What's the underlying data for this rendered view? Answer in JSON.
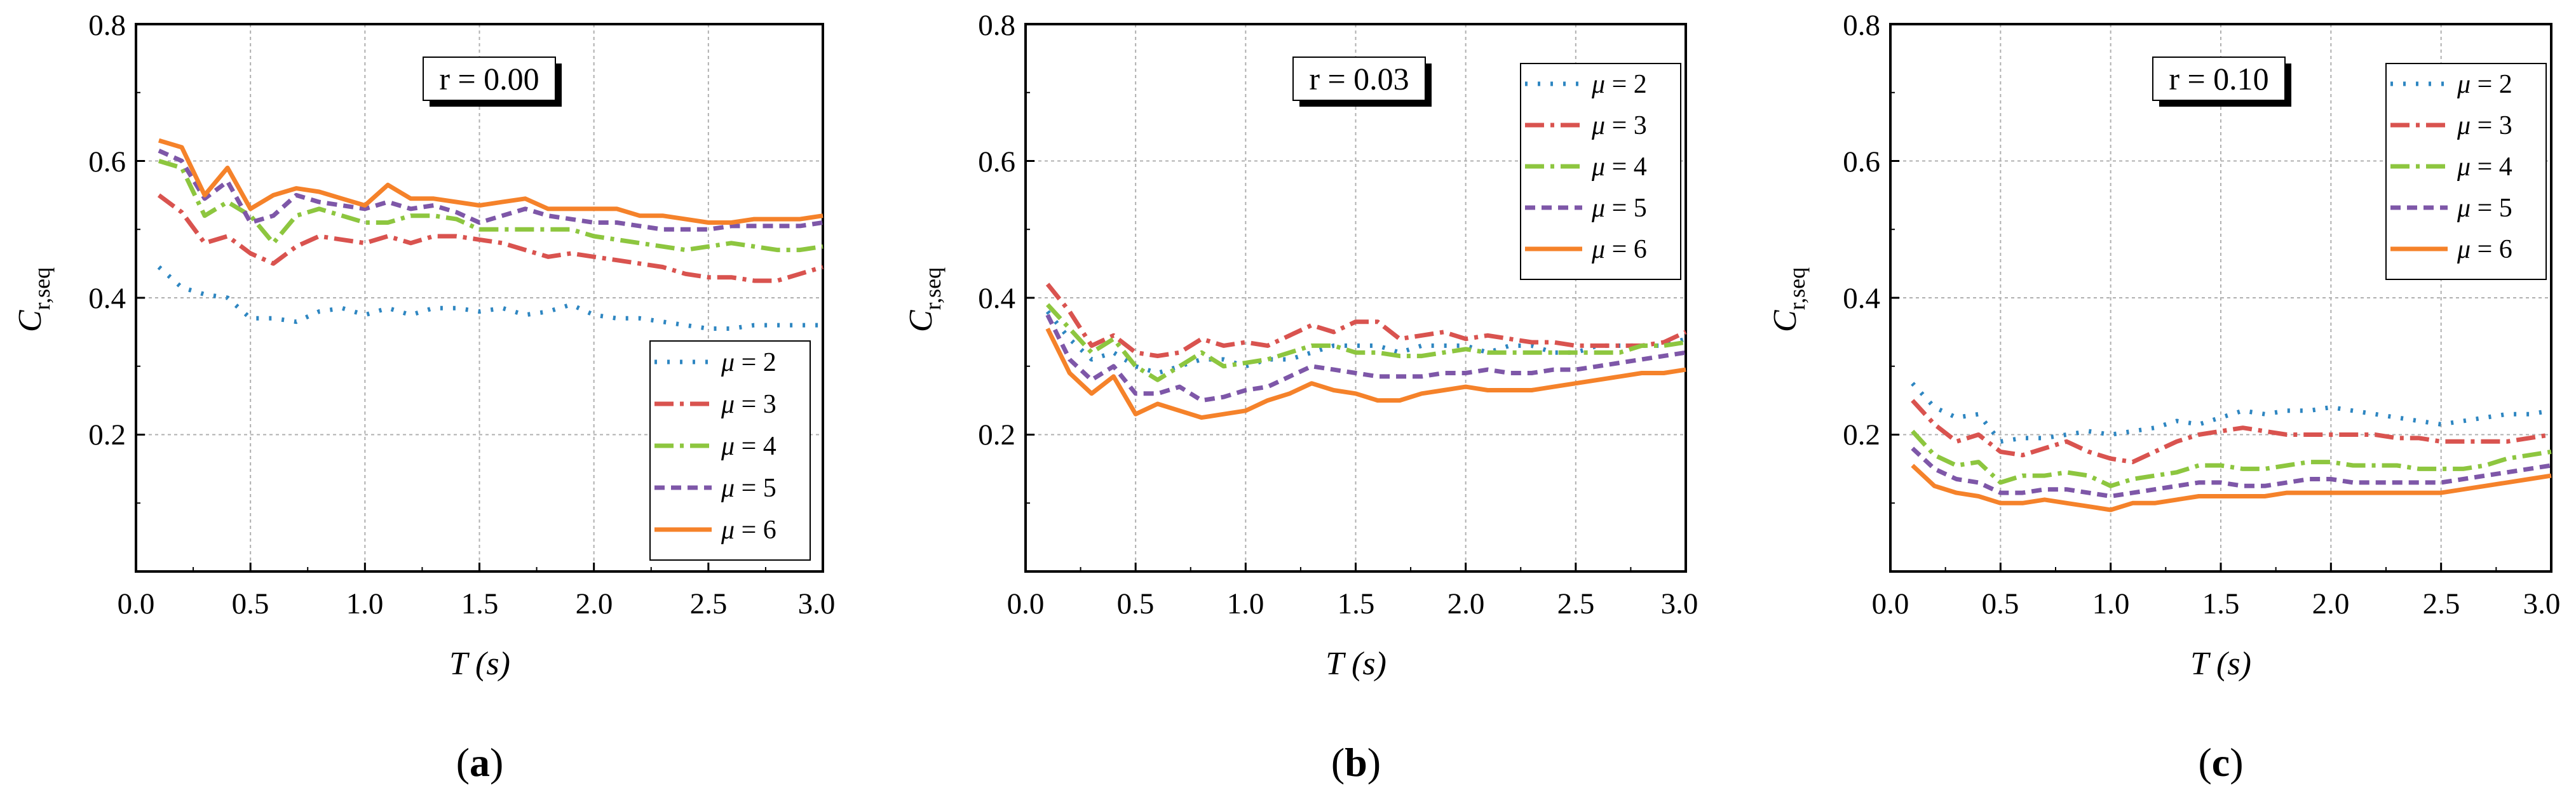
{
  "chart_data": [
    {
      "type": "line",
      "panel_label": "a",
      "annotation": "r = 0.00",
      "xlabel": "T (s)",
      "ylabel": "C r,seq",
      "ylabel_main": "C",
      "ylabel_sub": "r,seq",
      "xlim": [
        0,
        3
      ],
      "ylim": [
        0,
        0.8
      ],
      "xticks": [
        "0.0",
        "0.5",
        "1.0",
        "1.5",
        "2.0",
        "2.5",
        "3.0"
      ],
      "yticks": [
        "0.2",
        "0.4",
        "0.6",
        "0.8"
      ],
      "grid": true,
      "legend_position": "bottom-right",
      "x": [
        0.1,
        0.2,
        0.3,
        0.4,
        0.5,
        0.6,
        0.7,
        0.8,
        0.9,
        1.0,
        1.1,
        1.2,
        1.3,
        1.4,
        1.5,
        1.6,
        1.7,
        1.8,
        1.9,
        2.0,
        2.1,
        2.2,
        2.3,
        2.4,
        2.5,
        2.6,
        2.7,
        2.8,
        2.9,
        3.0
      ],
      "series": [
        {
          "name": "μ = 2",
          "mu": "2",
          "values": [
            0.445,
            0.415,
            0.405,
            0.4,
            0.37,
            0.37,
            0.365,
            0.38,
            0.385,
            0.375,
            0.385,
            0.375,
            0.385,
            0.385,
            0.38,
            0.385,
            0.375,
            0.38,
            0.39,
            0.375,
            0.37,
            0.37,
            0.365,
            0.36,
            0.355,
            0.355,
            0.36,
            0.36,
            0.36,
            0.36
          ]
        },
        {
          "name": "μ = 3",
          "mu": "3",
          "values": [
            0.55,
            0.525,
            0.48,
            0.49,
            0.465,
            0.45,
            0.475,
            0.49,
            0.485,
            0.48,
            0.49,
            0.48,
            0.49,
            0.49,
            0.485,
            0.48,
            0.47,
            0.46,
            0.465,
            0.46,
            0.455,
            0.45,
            0.445,
            0.435,
            0.43,
            0.43,
            0.425,
            0.425,
            0.435,
            0.445
          ]
        },
        {
          "name": "μ = 4",
          "mu": "4",
          "values": [
            0.6,
            0.59,
            0.52,
            0.54,
            0.52,
            0.48,
            0.52,
            0.53,
            0.52,
            0.51,
            0.51,
            0.52,
            0.52,
            0.515,
            0.5,
            0.5,
            0.5,
            0.5,
            0.5,
            0.49,
            0.485,
            0.48,
            0.475,
            0.47,
            0.475,
            0.48,
            0.475,
            0.47,
            0.47,
            0.475
          ]
        },
        {
          "name": "μ = 5",
          "mu": "5",
          "values": [
            0.615,
            0.6,
            0.545,
            0.57,
            0.51,
            0.52,
            0.55,
            0.54,
            0.535,
            0.53,
            0.54,
            0.53,
            0.535,
            0.525,
            0.51,
            0.52,
            0.53,
            0.52,
            0.515,
            0.51,
            0.51,
            0.505,
            0.5,
            0.5,
            0.5,
            0.505,
            0.505,
            0.505,
            0.505,
            0.51
          ]
        },
        {
          "name": "μ = 6",
          "mu": "6",
          "values": [
            0.63,
            0.62,
            0.55,
            0.59,
            0.53,
            0.55,
            0.56,
            0.555,
            0.545,
            0.535,
            0.565,
            0.545,
            0.545,
            0.54,
            0.535,
            0.54,
            0.545,
            0.53,
            0.53,
            0.53,
            0.53,
            0.52,
            0.52,
            0.515,
            0.51,
            0.51,
            0.515,
            0.515,
            0.515,
            0.52
          ]
        }
      ]
    },
    {
      "type": "line",
      "panel_label": "b",
      "annotation": "r = 0.03",
      "xlabel": "T (s)",
      "ylabel": "C r,seq",
      "ylabel_main": "C",
      "ylabel_sub": "r,seq",
      "xlim": [
        0,
        3
      ],
      "ylim": [
        0,
        0.8
      ],
      "xticks": [
        "0.0",
        "0.5",
        "1.0",
        "1.5",
        "2.0",
        "2.5",
        "3.0"
      ],
      "yticks": [
        "0.2",
        "0.4",
        "0.6",
        "0.8"
      ],
      "grid": true,
      "legend_position": "top-right",
      "x": [
        0.1,
        0.2,
        0.3,
        0.4,
        0.5,
        0.6,
        0.7,
        0.8,
        0.9,
        1.0,
        1.1,
        1.2,
        1.3,
        1.4,
        1.5,
        1.6,
        1.7,
        1.8,
        1.9,
        2.0,
        2.1,
        2.2,
        2.3,
        2.4,
        2.5,
        2.6,
        2.7,
        2.8,
        2.9,
        3.0
      ],
      "series": [
        {
          "name": "μ = 2",
          "mu": "2",
          "values": [
            0.38,
            0.34,
            0.31,
            0.32,
            0.3,
            0.29,
            0.3,
            0.31,
            0.31,
            0.3,
            0.31,
            0.31,
            0.32,
            0.33,
            0.33,
            0.33,
            0.32,
            0.33,
            0.33,
            0.33,
            0.32,
            0.33,
            0.33,
            0.32,
            0.32,
            0.33,
            0.33,
            0.33,
            0.33,
            0.34
          ]
        },
        {
          "name": "μ = 3",
          "mu": "3",
          "values": [
            0.42,
            0.38,
            0.33,
            0.345,
            0.32,
            0.315,
            0.32,
            0.34,
            0.33,
            0.335,
            0.33,
            0.345,
            0.36,
            0.35,
            0.365,
            0.365,
            0.34,
            0.345,
            0.35,
            0.34,
            0.345,
            0.34,
            0.335,
            0.335,
            0.33,
            0.33,
            0.33,
            0.33,
            0.335,
            0.35
          ]
        },
        {
          "name": "μ = 4",
          "mu": "4",
          "values": [
            0.39,
            0.355,
            0.32,
            0.34,
            0.3,
            0.28,
            0.3,
            0.32,
            0.3,
            0.305,
            0.31,
            0.32,
            0.33,
            0.33,
            0.32,
            0.32,
            0.315,
            0.315,
            0.32,
            0.325,
            0.32,
            0.32,
            0.32,
            0.32,
            0.32,
            0.32,
            0.32,
            0.33,
            0.33,
            0.335
          ]
        },
        {
          "name": "μ = 5",
          "mu": "5",
          "values": [
            0.375,
            0.31,
            0.28,
            0.3,
            0.26,
            0.26,
            0.27,
            0.25,
            0.255,
            0.265,
            0.27,
            0.285,
            0.3,
            0.295,
            0.29,
            0.285,
            0.285,
            0.285,
            0.29,
            0.29,
            0.295,
            0.29,
            0.29,
            0.295,
            0.295,
            0.3,
            0.305,
            0.31,
            0.315,
            0.32
          ]
        },
        {
          "name": "μ = 6",
          "mu": "6",
          "values": [
            0.355,
            0.29,
            0.26,
            0.285,
            0.23,
            0.245,
            0.235,
            0.225,
            0.23,
            0.235,
            0.25,
            0.26,
            0.275,
            0.265,
            0.26,
            0.25,
            0.25,
            0.26,
            0.265,
            0.27,
            0.265,
            0.265,
            0.265,
            0.27,
            0.275,
            0.28,
            0.285,
            0.29,
            0.29,
            0.295
          ]
        }
      ]
    },
    {
      "type": "line",
      "panel_label": "c",
      "annotation": "r = 0.10",
      "xlabel": "T (s)",
      "ylabel": "C r,seq",
      "ylabel_main": "C",
      "ylabel_sub": "r,seq",
      "xlim": [
        0,
        3
      ],
      "ylim": [
        0,
        0.8
      ],
      "xticks": [
        "0.0",
        "0.5",
        "1.0",
        "1.5",
        "2.0",
        "2.5",
        "3.0"
      ],
      "yticks": [
        "0.2",
        "0.4",
        "0.6",
        "0.8"
      ],
      "grid": true,
      "legend_position": "top-right",
      "x": [
        0.1,
        0.2,
        0.3,
        0.4,
        0.5,
        0.6,
        0.7,
        0.8,
        0.9,
        1.0,
        1.1,
        1.2,
        1.3,
        1.4,
        1.5,
        1.6,
        1.7,
        1.8,
        1.9,
        2.0,
        2.1,
        2.2,
        2.3,
        2.4,
        2.5,
        2.6,
        2.7,
        2.8,
        2.9,
        3.0
      ],
      "series": [
        {
          "name": "μ = 2",
          "mu": "2",
          "values": [
            0.275,
            0.24,
            0.225,
            0.23,
            0.19,
            0.195,
            0.195,
            0.2,
            0.205,
            0.2,
            0.205,
            0.21,
            0.22,
            0.215,
            0.225,
            0.235,
            0.23,
            0.235,
            0.235,
            0.24,
            0.235,
            0.23,
            0.225,
            0.22,
            0.215,
            0.22,
            0.225,
            0.23,
            0.23,
            0.235
          ]
        },
        {
          "name": "μ = 3",
          "mu": "3",
          "values": [
            0.25,
            0.215,
            0.19,
            0.2,
            0.175,
            0.17,
            0.18,
            0.19,
            0.175,
            0.165,
            0.16,
            0.175,
            0.19,
            0.2,
            0.205,
            0.21,
            0.205,
            0.2,
            0.2,
            0.2,
            0.2,
            0.2,
            0.195,
            0.195,
            0.19,
            0.19,
            0.19,
            0.19,
            0.195,
            0.2
          ]
        },
        {
          "name": "μ = 4",
          "mu": "4",
          "values": [
            0.205,
            0.17,
            0.155,
            0.16,
            0.13,
            0.14,
            0.14,
            0.145,
            0.14,
            0.125,
            0.135,
            0.14,
            0.145,
            0.155,
            0.155,
            0.15,
            0.15,
            0.155,
            0.16,
            0.16,
            0.155,
            0.155,
            0.155,
            0.15,
            0.15,
            0.15,
            0.155,
            0.165,
            0.17,
            0.175
          ]
        },
        {
          "name": "μ = 5",
          "mu": "5",
          "values": [
            0.18,
            0.15,
            0.135,
            0.13,
            0.115,
            0.115,
            0.12,
            0.12,
            0.115,
            0.11,
            0.115,
            0.12,
            0.125,
            0.13,
            0.13,
            0.125,
            0.125,
            0.13,
            0.135,
            0.135,
            0.13,
            0.13,
            0.13,
            0.13,
            0.13,
            0.135,
            0.14,
            0.145,
            0.15,
            0.155
          ]
        },
        {
          "name": "μ = 6",
          "mu": "6",
          "values": [
            0.155,
            0.125,
            0.115,
            0.11,
            0.1,
            0.1,
            0.105,
            0.1,
            0.095,
            0.09,
            0.1,
            0.1,
            0.105,
            0.11,
            0.11,
            0.11,
            0.11,
            0.115,
            0.115,
            0.115,
            0.115,
            0.115,
            0.115,
            0.115,
            0.115,
            0.12,
            0.125,
            0.13,
            0.135,
            0.14
          ]
        }
      ]
    }
  ],
  "series_styles": [
    {
      "color": "#2E86C1",
      "dash": "4 16",
      "width": 7
    },
    {
      "color": "#D9534F",
      "dash": "30 10 6 10",
      "width": 7
    },
    {
      "color": "#8DC63F",
      "dash": "30 10 6 10",
      "width": 7
    },
    {
      "color": "#7E57A8",
      "dash": "16 10",
      "width": 7
    },
    {
      "color": "#F5822A",
      "dash": "",
      "width": 7
    }
  ],
  "colors": {
    "grid": "#b0b0b0",
    "axis": "#000000",
    "background": "#ffffff"
  }
}
